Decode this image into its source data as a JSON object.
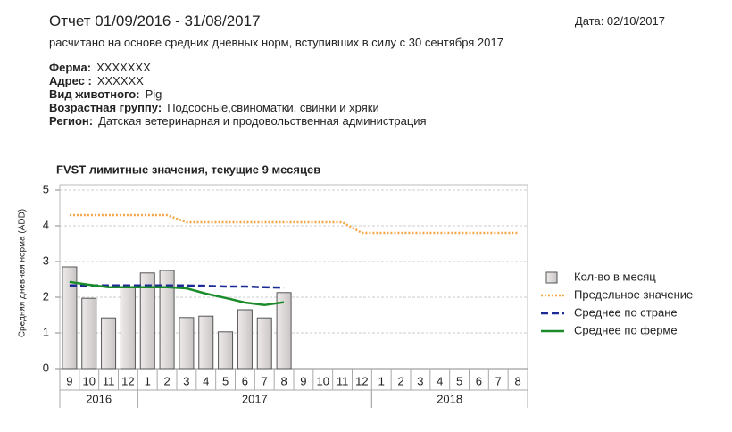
{
  "header": {
    "title": "Отчет 01/09/2016 - 31/08/2017",
    "date": "Дата: 02/10/2017",
    "subtitle": "расчитано на основе средних дневных норм, вступивших в силу с 30 сентября 2017",
    "fields": [
      {
        "label": "Ферма:",
        "value": "XXXXXXX"
      },
      {
        "label": "Адрес :",
        "value": "XXXXXX"
      },
      {
        "label": "Вид животного:",
        "value": "Pig"
      },
      {
        "label": "Возрастная группу:",
        "value": "Подсосные,свиноматки, свинки и хряки"
      },
      {
        "label": "Регион:",
        "value": "Датская ветеринарная и продовольственная администрация"
      }
    ]
  },
  "chart_data": {
    "type": "bar",
    "title": "FVST лимитные значения, текущие 9 месяцев",
    "y_label": "Средняя дневная норма (ADD)",
    "categories": [
      "9",
      "10",
      "11",
      "12",
      "1",
      "2",
      "3",
      "4",
      "5",
      "6",
      "7",
      "8",
      "9",
      "10",
      "11",
      "12",
      "1",
      "2",
      "3",
      "4",
      "5",
      "6",
      "7",
      "8"
    ],
    "years": [
      "2016",
      "2017",
      "2018"
    ],
    "ylim": [
      0,
      5
    ],
    "yticks": [
      0,
      1,
      2,
      3,
      4,
      5
    ],
    "grid": true,
    "legend": "right",
    "series": [
      {
        "name": "Кол-во в месяц",
        "kind": "bar",
        "color": "#c9c5c5",
        "values": [
          2.85,
          1.97,
          1.42,
          2.27,
          2.68,
          2.75,
          1.43,
          1.47,
          1.03,
          1.65,
          1.42,
          2.13,
          null,
          null,
          null,
          null,
          null,
          null,
          null,
          null,
          null,
          null,
          null,
          null
        ]
      },
      {
        "name": "Предельное значение",
        "kind": "line",
        "style": "dotted",
        "color": "#f4a646",
        "values": [
          4.3,
          4.3,
          4.3,
          4.3,
          4.3,
          4.3,
          4.1,
          4.1,
          4.1,
          4.1,
          4.1,
          4.1,
          4.1,
          4.1,
          4.1,
          3.8,
          3.8,
          3.8,
          3.8,
          3.8,
          3.8,
          3.8,
          3.8,
          3.8
        ]
      },
      {
        "name": "Среднее по стране",
        "kind": "line",
        "style": "dashed",
        "color": "#1c2a96",
        "values": [
          2.33,
          2.33,
          2.33,
          2.33,
          2.33,
          2.33,
          2.33,
          2.32,
          2.3,
          2.3,
          2.28,
          2.27,
          null,
          null,
          null,
          null,
          null,
          null,
          null,
          null,
          null,
          null,
          null,
          null
        ]
      },
      {
        "name": "Среднее по ферме",
        "kind": "line",
        "style": "solid",
        "color": "#1a8c2a",
        "values": [
          2.43,
          2.35,
          2.28,
          2.28,
          2.28,
          2.28,
          2.25,
          2.1,
          1.98,
          1.85,
          1.78,
          1.86,
          null,
          null,
          null,
          null,
          null,
          null,
          null,
          null,
          null,
          null,
          null,
          null
        ]
      }
    ]
  }
}
